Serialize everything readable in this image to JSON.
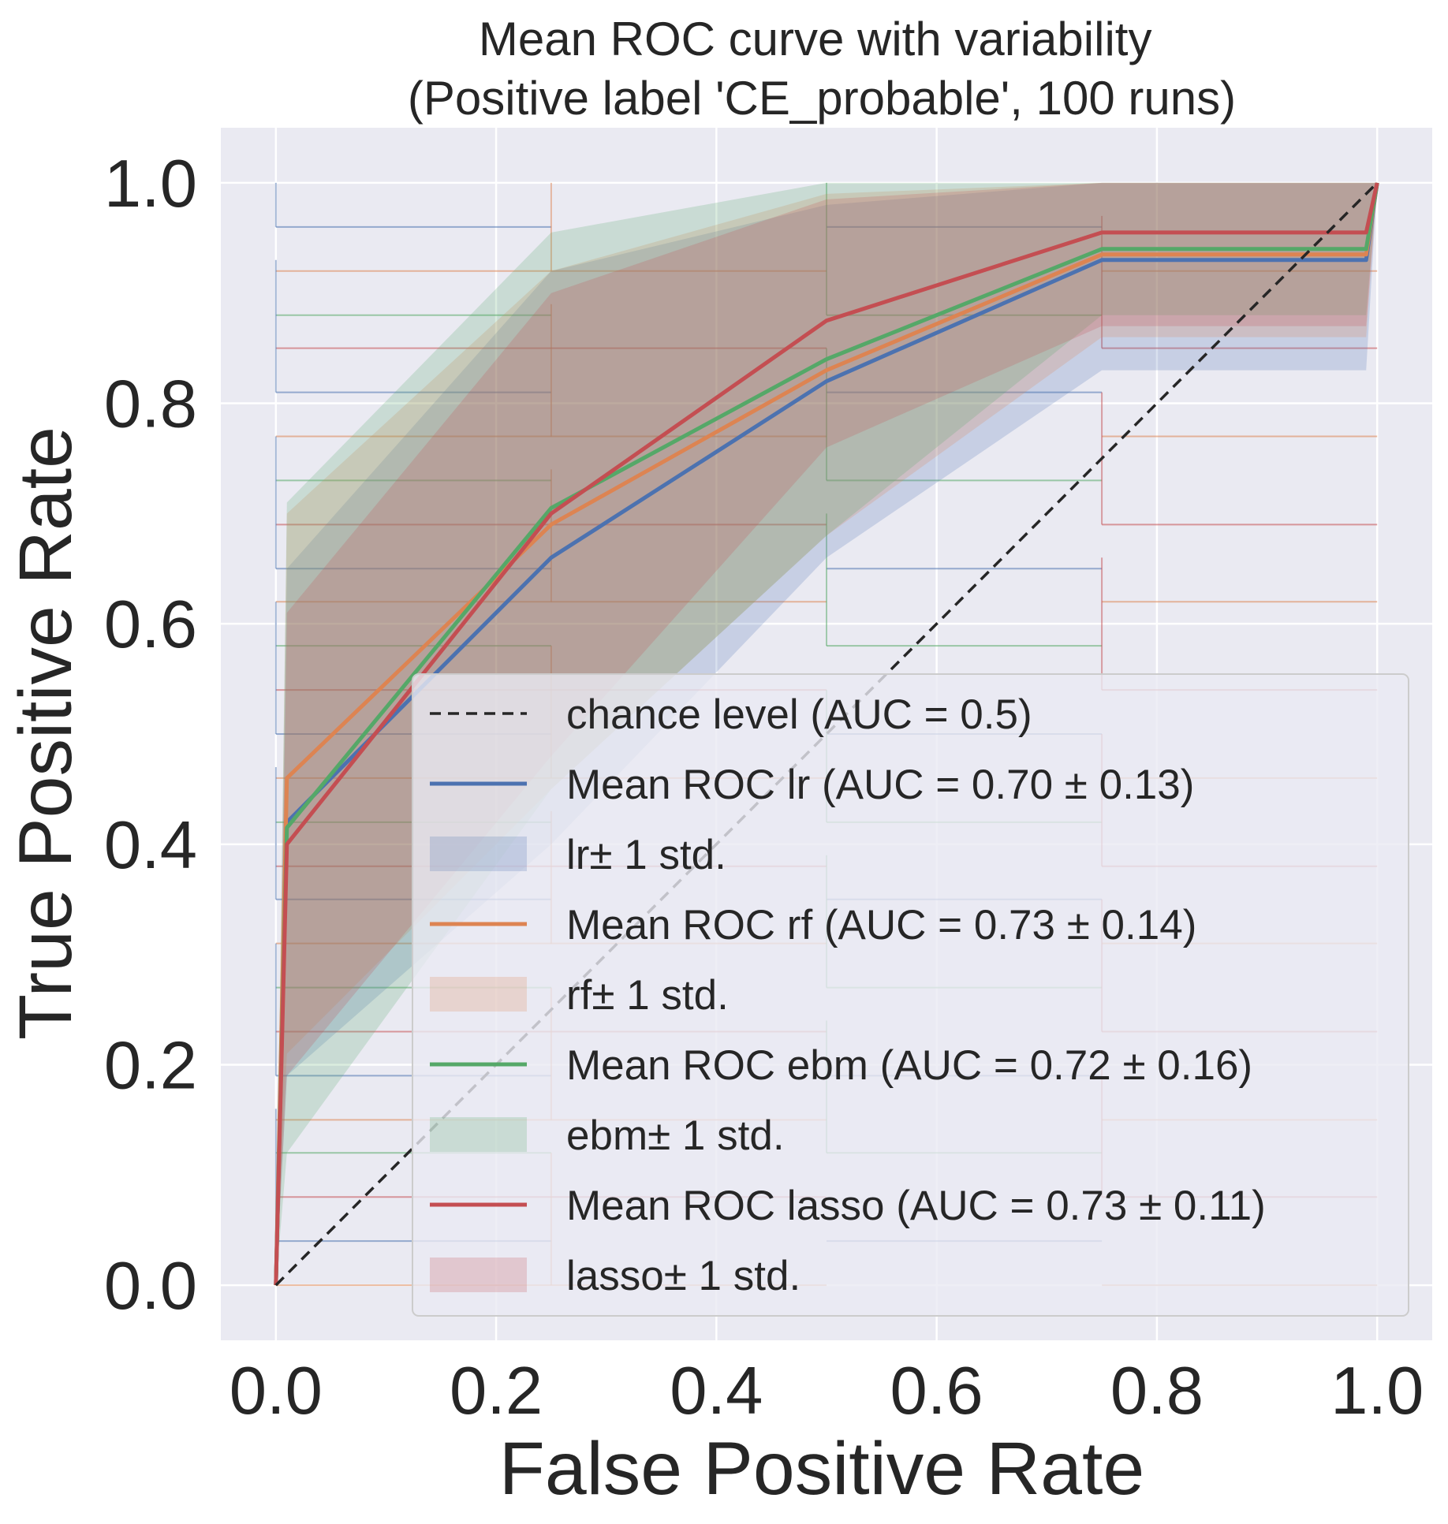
{
  "chart_data": {
    "type": "line",
    "title": "Mean ROC curve with variability\n(Positive label 'CE_probable', 100 runs)",
    "xlabel": "False Positive Rate",
    "ylabel": "True Positive Rate",
    "xlim": [
      -0.05,
      1.05
    ],
    "ylim": [
      -0.05,
      1.05
    ],
    "xticks": [
      "0.0",
      "0.2",
      "0.4",
      "0.6",
      "0.8",
      "1.0"
    ],
    "yticks": [
      "0.0",
      "0.2",
      "0.4",
      "0.6",
      "0.8",
      "1.0"
    ],
    "grid": true,
    "legend_position": "lower right",
    "colors": {
      "background": "#eaeaf2",
      "grid": "#ffffff",
      "text": "#262626",
      "chance": "#262626"
    },
    "chance_line": {
      "label": "chance level (AUC = 0.5)",
      "x": [
        0,
        1
      ],
      "y": [
        0,
        1
      ]
    },
    "series": [
      {
        "key": "lr",
        "name": "Mean ROC lr (AUC = 0.70 ± 0.13)",
        "band_label": " lr± 1 std.",
        "color": "#4c72b0",
        "x": [
          0,
          0.01,
          0.25,
          0.5,
          0.75,
          0.99,
          1.0
        ],
        "y": [
          0,
          0.42,
          0.66,
          0.82,
          0.93,
          0.93,
          1.0
        ],
        "upper": [
          0,
          0.65,
          0.92,
          0.98,
          1.0,
          1.0,
          1.0
        ],
        "lower": [
          0,
          0.19,
          0.4,
          0.66,
          0.83,
          0.83,
          1.0
        ]
      },
      {
        "key": "rf",
        "name": "Mean ROC rf (AUC = 0.73 ± 0.14)",
        "band_label": " rf± 1 std.",
        "color": "#dd8452",
        "x": [
          0,
          0.01,
          0.25,
          0.5,
          0.75,
          0.99,
          1.0
        ],
        "y": [
          0,
          0.46,
          0.69,
          0.83,
          0.935,
          0.935,
          1.0
        ],
        "upper": [
          0,
          0.7,
          0.92,
          0.99,
          1.0,
          1.0,
          1.0
        ],
        "lower": [
          0,
          0.21,
          0.45,
          0.68,
          0.86,
          0.86,
          1.0
        ]
      },
      {
        "key": "ebm",
        "name": "Mean ROC ebm (AUC = 0.72 ± 0.16)",
        "band_label": " ebm± 1 std.",
        "color": "#55a868",
        "x": [
          0,
          0.01,
          0.25,
          0.5,
          0.75,
          0.99,
          1.0
        ],
        "y": [
          0,
          0.415,
          0.705,
          0.84,
          0.94,
          0.94,
          1.0
        ],
        "upper": [
          0,
          0.71,
          0.955,
          1.0,
          1.0,
          1.0,
          1.0
        ],
        "lower": [
          0,
          0.12,
          0.45,
          0.68,
          0.88,
          0.88,
          1.0
        ]
      },
      {
        "key": "lasso",
        "name": "Mean ROC lasso (AUC = 0.73 ± 0.11)",
        "band_label": " lasso± 1 std.",
        "color": "#c44e52",
        "x": [
          0,
          0.01,
          0.25,
          0.5,
          0.75,
          0.99,
          1.0
        ],
        "y": [
          0,
          0.4,
          0.7,
          0.875,
          0.955,
          0.955,
          1.0
        ],
        "upper": [
          0,
          0.61,
          0.9,
          0.985,
          1.0,
          1.0,
          1.0
        ],
        "lower": [
          0,
          0.19,
          0.48,
          0.76,
          0.87,
          0.87,
          1.0
        ]
      }
    ],
    "individual_run_levels": [
      0.96,
      0.92,
      0.88,
      0.85,
      0.81,
      0.77,
      0.73,
      0.69,
      0.65,
      0.62,
      0.58,
      0.54,
      0.5,
      0.46,
      0.42,
      0.38,
      0.35,
      0.31,
      0.27,
      0.23,
      0.19,
      0.15,
      0.12,
      0.08,
      0.04,
      0.0
    ]
  }
}
